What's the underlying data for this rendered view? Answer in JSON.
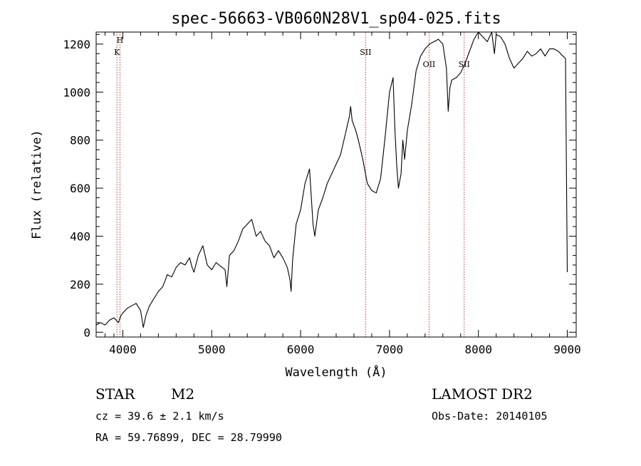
{
  "chart_data": {
    "type": "line",
    "title": "spec-56663-VB060N28V1_sp04-025.fits",
    "xlabel": "Wavelength (Å)",
    "ylabel": "Flux (relative)",
    "xlim": [
      3700,
      9100
    ],
    "ylim": [
      -20,
      1250
    ],
    "xticks": [
      4000,
      5000,
      6000,
      7000,
      8000,
      9000
    ],
    "yticks": [
      0,
      200,
      400,
      600,
      800,
      1000,
      1200
    ],
    "series": [
      {
        "x": [
          3700,
          3750,
          3800,
          3850,
          3900,
          3950,
          3980,
          4000,
          4050,
          4100,
          4150,
          4200,
          4230,
          4260,
          4300,
          4350,
          4400,
          4450,
          4500,
          4550,
          4600,
          4650,
          4700,
          4750,
          4780,
          4800,
          4850,
          4900,
          4950,
          5000,
          5050,
          5100,
          5150,
          5170,
          5200,
          5250,
          5300,
          5350,
          5400,
          5450,
          5500,
          5550,
          5600,
          5650,
          5700,
          5750,
          5800,
          5850,
          5880,
          5893,
          5910,
          5950,
          6000,
          6050,
          6100,
          6140,
          6160,
          6200,
          6250,
          6300,
          6350,
          6400,
          6450,
          6500,
          6550,
          6563,
          6580,
          6620,
          6650,
          6700,
          6750,
          6800,
          6850,
          6900,
          6950,
          7000,
          7040,
          7060,
          7080,
          7100,
          7130,
          7150,
          7170,
          7200,
          7250,
          7300,
          7350,
          7400,
          7450,
          7500,
          7550,
          7600,
          7640,
          7660,
          7680,
          7700,
          7750,
          7800,
          7850,
          7900,
          7950,
          8000,
          8050,
          8100,
          8150,
          8180,
          8200,
          8250,
          8300,
          8350,
          8400,
          8450,
          8500,
          8550,
          8600,
          8650,
          8700,
          8750,
          8800,
          8850,
          8900,
          8950,
          8980,
          9000
        ],
        "y": [
          30,
          40,
          30,
          50,
          60,
          40,
          70,
          80,
          100,
          110,
          120,
          90,
          20,
          70,
          110,
          140,
          170,
          190,
          240,
          230,
          270,
          290,
          280,
          310,
          270,
          250,
          320,
          360,
          280,
          260,
          290,
          275,
          260,
          190,
          320,
          340,
          380,
          430,
          450,
          470,
          400,
          420,
          380,
          360,
          310,
          340,
          310,
          270,
          220,
          170,
          300,
          450,
          510,
          620,
          680,
          450,
          400,
          510,
          560,
          620,
          660,
          700,
          740,
          820,
          900,
          940,
          880,
          840,
          800,
          720,
          620,
          590,
          580,
          640,
          810,
          1000,
          1060,
          850,
          700,
          600,
          660,
          800,
          720,
          840,
          950,
          1090,
          1150,
          1180,
          1200,
          1210,
          1220,
          1200,
          1100,
          920,
          1020,
          1050,
          1060,
          1080,
          1120,
          1170,
          1220,
          1250,
          1230,
          1210,
          1250,
          1160,
          1240,
          1230,
          1200,
          1140,
          1100,
          1120,
          1140,
          1170,
          1150,
          1160,
          1180,
          1150,
          1180,
          1180,
          1170,
          1150,
          1140,
          250
        ]
      }
    ],
    "line_markers": [
      {
        "label": "H",
        "x": 3968
      },
      {
        "label": "K",
        "x": 3934
      },
      {
        "label": "SII",
        "x": 6731
      },
      {
        "label": "OII",
        "x": 7445
      },
      {
        "label": "SII",
        "x": 7840
      }
    ],
    "grid": false,
    "line_color": "#000000",
    "marker_color": "#c0392b"
  },
  "info": {
    "object_class": "STAR",
    "subclass": "M2",
    "survey": "LAMOST DR2",
    "redshift_text": "cz = 39.6 ± 2.1 km/s",
    "obs_date_text": "Obs-Date: 20140105",
    "coords_text": "RA =  59.76899, DEC =  28.79990"
  }
}
